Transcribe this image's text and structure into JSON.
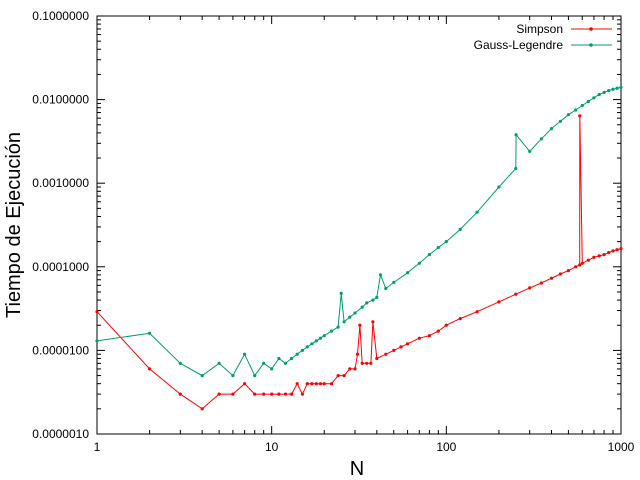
{
  "chart_data": {
    "type": "line",
    "xlabel": "N",
    "ylabel": "Tiempo de Ejecución",
    "x_scale": "log",
    "y_scale": "log",
    "xlim": [
      1,
      1000
    ],
    "ylim": [
      1e-06,
      0.1
    ],
    "x_ticks": [
      {
        "value": 1,
        "label": "1"
      },
      {
        "value": 10,
        "label": "10"
      },
      {
        "value": 100,
        "label": "100"
      },
      {
        "value": 1000,
        "label": "1000"
      }
    ],
    "y_ticks": [
      {
        "value": 1e-06,
        "label": "0.0000010"
      },
      {
        "value": 1e-05,
        "label": "0.0000100"
      },
      {
        "value": 0.0001,
        "label": "0.0001000"
      },
      {
        "value": 0.001,
        "label": "0.0010000"
      },
      {
        "value": 0.01,
        "label": "0.0100000"
      },
      {
        "value": 0.1,
        "label": "0.1000000"
      }
    ],
    "grid": false,
    "legend_position": "top-right",
    "series": [
      {
        "name": "Simpson",
        "color": "#ff0000",
        "x": [
          1,
          2,
          3,
          4,
          5,
          6,
          7,
          8,
          9,
          10,
          11,
          12,
          13,
          14,
          15,
          16,
          17,
          18,
          19,
          20,
          22,
          24,
          26,
          28,
          30,
          31,
          32,
          33,
          35,
          37,
          38,
          40,
          45,
          50,
          55,
          60,
          70,
          80,
          90,
          100,
          120,
          150,
          200,
          250,
          300,
          350,
          400,
          450,
          500,
          550,
          580,
          581,
          600,
          650,
          700,
          750,
          800,
          850,
          900,
          950,
          1000
        ],
        "values": [
          2.9e-05,
          6e-06,
          3e-06,
          2e-06,
          3e-06,
          3e-06,
          4e-06,
          3e-06,
          3e-06,
          3e-06,
          3e-06,
          3e-06,
          3e-06,
          4e-06,
          3e-06,
          4e-06,
          4e-06,
          4e-06,
          4e-06,
          4e-06,
          4e-06,
          5e-06,
          5e-06,
          6e-06,
          6e-06,
          9e-06,
          2e-05,
          7e-06,
          7e-06,
          7e-06,
          2.2e-05,
          8e-06,
          9e-06,
          1e-05,
          1.1e-05,
          1.2e-05,
          1.4e-05,
          1.5e-05,
          1.7e-05,
          2e-05,
          2.4e-05,
          2.9e-05,
          3.8e-05,
          4.7e-05,
          5.6e-05,
          6.4e-05,
          7.3e-05,
          8.2e-05,
          9e-05,
          0.0001,
          0.000105,
          0.0064,
          0.00011,
          0.00012,
          0.00013,
          0.000135,
          0.00014,
          0.000148,
          0.000155,
          0.00016,
          0.000165
        ]
      },
      {
        "name": "Gauss-Legendre",
        "color": "#009e73",
        "x": [
          1,
          2,
          3,
          4,
          5,
          6,
          7,
          8,
          9,
          10,
          11,
          12,
          13,
          14,
          15,
          16,
          17,
          18,
          19,
          20,
          22,
          24,
          25,
          26,
          28,
          30,
          33,
          35,
          38,
          40,
          42,
          45,
          50,
          60,
          70,
          80,
          90,
          100,
          120,
          150,
          200,
          250,
          251,
          300,
          350,
          400,
          450,
          500,
          550,
          600,
          650,
          700,
          750,
          800,
          850,
          900,
          950,
          1000
        ],
        "values": [
          1.3e-05,
          1.6e-05,
          7e-06,
          5e-06,
          7e-06,
          5e-06,
          9e-06,
          5e-06,
          7e-06,
          6e-06,
          8e-06,
          7e-06,
          8e-06,
          9e-06,
          1e-05,
          1.1e-05,
          1.2e-05,
          1.3e-05,
          1.4e-05,
          1.5e-05,
          1.7e-05,
          1.9e-05,
          4.8e-05,
          2.2e-05,
          2.5e-05,
          2.8e-05,
          3.3e-05,
          3.7e-05,
          4e-05,
          4.3e-05,
          8e-05,
          5.5e-05,
          6.5e-05,
          8.5e-05,
          0.00011,
          0.00014,
          0.00017,
          0.0002,
          0.00028,
          0.00045,
          0.0009,
          0.0015,
          0.0038,
          0.0024,
          0.0034,
          0.0045,
          0.0055,
          0.0066,
          0.0075,
          0.0085,
          0.0095,
          0.0105,
          0.0115,
          0.0122,
          0.0128,
          0.0133,
          0.0137,
          0.014
        ]
      }
    ]
  }
}
